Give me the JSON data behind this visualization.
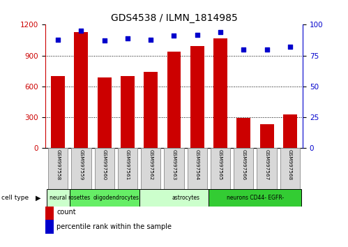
{
  "title": "GDS4538 / ILMN_1814985",
  "samples": [
    "GSM997558",
    "GSM997559",
    "GSM997560",
    "GSM997561",
    "GSM997562",
    "GSM997563",
    "GSM997564",
    "GSM997565",
    "GSM997566",
    "GSM997567",
    "GSM997568"
  ],
  "counts": [
    700,
    1130,
    690,
    700,
    740,
    940,
    990,
    1070,
    295,
    235,
    330
  ],
  "percentile_ranks": [
    88,
    95,
    87,
    89,
    88,
    91,
    92,
    94,
    80,
    80,
    82
  ],
  "cell_types": [
    {
      "label": "neural rosettes",
      "start": 0,
      "end": 1,
      "color": "#ccffcc"
    },
    {
      "label": "oligodendrocytes",
      "start": 1,
      "end": 4,
      "color": "#66ee66"
    },
    {
      "label": "astrocytes",
      "start": 4,
      "end": 7,
      "color": "#ccffcc"
    },
    {
      "label": "neurons CD44- EGFR-",
      "start": 7,
      "end": 10,
      "color": "#33cc33"
    }
  ],
  "ylim_left": [
    0,
    1200
  ],
  "ylim_right": [
    0,
    100
  ],
  "yticks_left": [
    0,
    300,
    600,
    900,
    1200
  ],
  "yticks_right": [
    0,
    25,
    50,
    75,
    100
  ],
  "bar_color": "#cc0000",
  "dot_color": "#0000cc",
  "left_tick_color": "#cc0000",
  "right_tick_color": "#0000cc"
}
